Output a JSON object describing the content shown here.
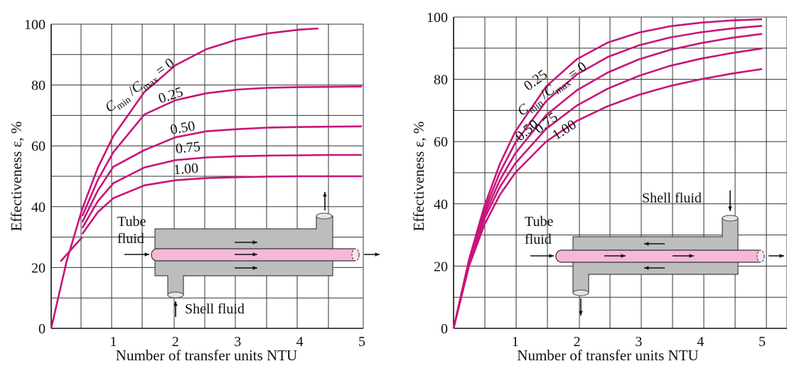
{
  "chart_data": [
    {
      "type": "line",
      "title": "",
      "xlabel": "Number of transfer units NTU",
      "ylabel": "Effectiveness ε, %",
      "xlim": [
        0,
        5
      ],
      "ylim": [
        0,
        100
      ],
      "xticks": [
        "1",
        "2",
        "3",
        "4",
        "5"
      ],
      "yticks": [
        "0",
        "20",
        "40",
        "60",
        "80",
        "100"
      ],
      "grid": true,
      "series": [
        {
          "name": "0",
          "x": [
            0,
            0.25,
            0.5,
            0.75,
            1,
            1.5,
            2,
            2.5,
            3,
            3.5,
            4,
            4.3
          ],
          "y": [
            0,
            22.1,
            39.3,
            52.8,
            63.2,
            77.7,
            86.5,
            91.8,
            95.0,
            97.0,
            98.2,
            98.6
          ]
        },
        {
          "name": "0.25",
          "x": [
            0,
            0.25,
            0.5,
            0.75,
            1,
            1.5,
            2,
            2.5,
            3,
            3.5,
            4,
            4.5,
            5
          ],
          "y": [
            0,
            21.2,
            36.9,
            48.8,
            57.9,
            70.3,
            75.0,
            77.3,
            78.5,
            79.1,
            79.3,
            79.4,
            79.5
          ]
        },
        {
          "name": "0.50",
          "x": [
            0,
            0.25,
            0.5,
            0.75,
            1,
            1.5,
            2,
            2.5,
            3,
            3.5,
            4,
            4.5,
            5
          ],
          "y": [
            0,
            20.6,
            34.9,
            45.3,
            53.1,
            58.6,
            62.8,
            64.8,
            65.5,
            66.0,
            66.2,
            66.3,
            66.4
          ]
        },
        {
          "name": "0.75",
          "x": [
            0,
            0.25,
            0.5,
            0.75,
            1,
            1.5,
            2,
            2.5,
            3,
            3.5,
            4,
            4.5,
            5
          ],
          "y": [
            0,
            19.8,
            33.0,
            41.8,
            47.7,
            52.9,
            55.3,
            56.2,
            56.6,
            56.8,
            56.9,
            57.0,
            57.0
          ]
        },
        {
          "name": "1.00",
          "x": [
            0,
            0.25,
            0.5,
            0.75,
            1,
            1.5,
            2,
            2.5,
            3,
            3.5,
            4,
            4.5,
            5
          ],
          "y": [
            0,
            19.7,
            31.0,
            38.2,
            42.8,
            47.0,
            48.7,
            49.4,
            49.7,
            49.9,
            50.0,
            50.0,
            50.0
          ]
        }
      ],
      "curve_label_prefix": "C",
      "inset": {
        "tube_label_1": "Tube",
        "tube_label_2": "fluid",
        "shell_label": "Shell fluid"
      }
    },
    {
      "type": "line",
      "title": "",
      "xlabel": "Number of transfer units NTU",
      "ylabel": "Effectiveness ε, %",
      "xlim": [
        0,
        5
      ],
      "ylim": [
        0,
        100
      ],
      "xticks": [
        "1",
        "2",
        "3",
        "4",
        "5"
      ],
      "yticks": [
        "0",
        "20",
        "40",
        "60",
        "80",
        "100"
      ],
      "grid": true,
      "series": [
        {
          "name": "0",
          "x": [
            0,
            0.25,
            0.5,
            0.75,
            1,
            1.5,
            2,
            2.5,
            3,
            3.5,
            4,
            4.5,
            5
          ],
          "y": [
            0,
            22.1,
            39.3,
            52.8,
            63.2,
            77.7,
            86.5,
            91.8,
            95.0,
            97.0,
            98.2,
            98.9,
            99.3
          ]
        },
        {
          "name": "0.25",
          "x": [
            0,
            0.25,
            0.5,
            0.75,
            1,
            1.5,
            2,
            2.5,
            3,
            3.5,
            4,
            4.5,
            5
          ],
          "y": [
            0,
            21.6,
            37.8,
            50.1,
            59.6,
            73.0,
            81.6,
            87.2,
            90.9,
            93.4,
            95.1,
            96.3,
            97.2
          ]
        },
        {
          "name": "0.50",
          "x": [
            0,
            0.25,
            0.5,
            0.75,
            1,
            1.5,
            2,
            2.5,
            3,
            3.5,
            4,
            4.5,
            5
          ],
          "y": [
            0,
            21.1,
            36.5,
            47.6,
            56.2,
            68.5,
            76.5,
            82.2,
            86.4,
            89.4,
            91.6,
            93.3,
            94.6
          ]
        },
        {
          "name": "0.75",
          "x": [
            0,
            0.25,
            0.5,
            0.75,
            1,
            1.5,
            2,
            2.5,
            3,
            3.5,
            4,
            4.5,
            5
          ],
          "y": [
            0,
            20.7,
            35.2,
            45.4,
            53.0,
            64.1,
            71.6,
            77.0,
            81.1,
            84.3,
            86.6,
            88.4,
            89.9
          ]
        },
        {
          "name": "1.00",
          "x": [
            0,
            0.25,
            0.5,
            0.75,
            1,
            1.5,
            2,
            2.5,
            3,
            3.5,
            4,
            4.5,
            5
          ],
          "y": [
            0,
            20.0,
            33.3,
            42.9,
            50.0,
            60.0,
            66.7,
            71.4,
            75.0,
            77.8,
            80.0,
            81.8,
            83.3
          ]
        }
      ],
      "curve_label_prefix": "C",
      "inset": {
        "tube_label_1": "Tube",
        "tube_label_2": "fluid",
        "shell_label": "Shell fluid"
      }
    }
  ],
  "style": {
    "curve_color": "#c8147a",
    "tube_color": "#f5b8d8",
    "shell_color": "#bdbdbd",
    "grid_color": "#333333"
  }
}
